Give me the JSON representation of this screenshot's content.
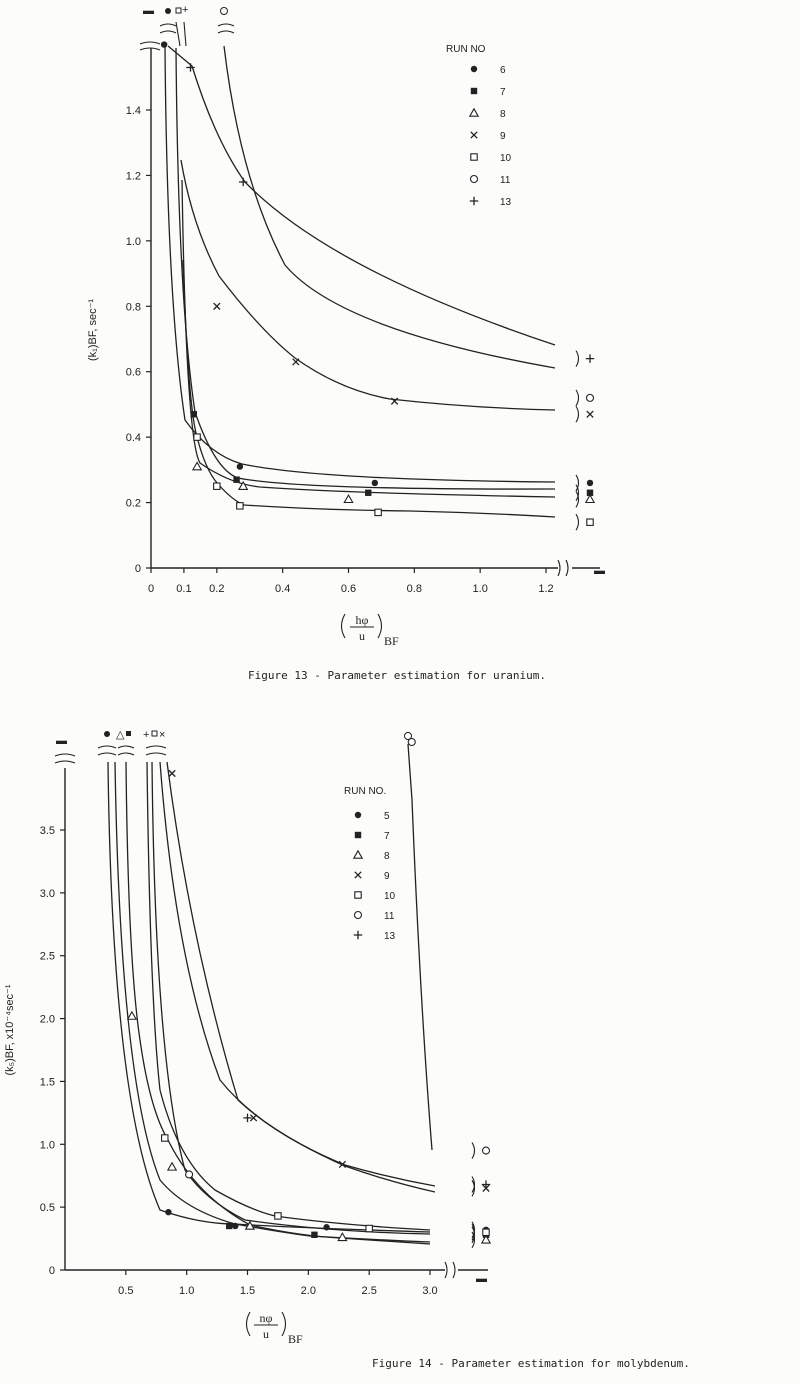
{
  "chart_data": [
    {
      "type": "line",
      "caption": "Figure 13 - Parameter estimation for uranium.",
      "ylabel": "(k₁)BF, sec⁻¹",
      "xlabel_num": "hφ",
      "xlabel_den": "u",
      "xlabel_sub": "BF",
      "ylim": [
        0,
        1.6
      ],
      "xlim": [
        0,
        1.3
      ],
      "x_ticks": [
        "0",
        "0.1",
        "0.2",
        "0.4",
        "0.6",
        "0.8",
        "1.0",
        "1.2"
      ],
      "y_ticks": [
        "0",
        "0.2",
        "0.4",
        "0.6",
        "0.8",
        "1.0",
        "1.2",
        "1.4"
      ],
      "legend_title": "RUN  NO",
      "legend_labels": [
        "6",
        "7",
        "8",
        "9",
        "10",
        "11",
        "13"
      ],
      "series": [
        {
          "name": "6",
          "marker": "filled-circle",
          "x": [
            0.04,
            0.27,
            0.68
          ],
          "y": [
            1.6,
            0.31,
            0.26
          ],
          "tail": 0.26
        },
        {
          "name": "7",
          "marker": "filled-square",
          "x": [
            0.13,
            0.26,
            0.66
          ],
          "y": [
            0.47,
            0.27,
            0.23
          ],
          "tail": 0.23
        },
        {
          "name": "8",
          "marker": "triangle",
          "x": [
            0.14,
            0.28,
            0.6
          ],
          "y": [
            0.31,
            0.25,
            0.21
          ],
          "tail": 0.21
        },
        {
          "name": "9",
          "marker": "x",
          "x": [
            0.2,
            0.44,
            0.74
          ],
          "y": [
            0.8,
            0.63,
            0.51
          ],
          "tail": 0.47
        },
        {
          "name": "10",
          "marker": "open-square",
          "x": [
            0.14,
            0.2,
            0.27,
            0.69
          ],
          "y": [
            0.4,
            0.25,
            0.19,
            0.17
          ],
          "tail": 0.14
        },
        {
          "name": "11",
          "marker": "open-circle",
          "x": [],
          "y": [],
          "tail": 0.52
        },
        {
          "name": "13",
          "marker": "plus",
          "x": [
            0.12,
            0.28
          ],
          "y": [
            1.53,
            1.18
          ],
          "tail": 0.64
        }
      ]
    },
    {
      "type": "line",
      "caption": "Figure 14 - Parameter estimation for molybdenum.",
      "ylabel": "(k₅)BF, x10⁻⁴sec⁻¹",
      "xlabel_num": "nφ",
      "xlabel_den": "u",
      "xlabel_sub": "BF",
      "ylim": [
        0,
        4.0
      ],
      "xlim": [
        0,
        3.0
      ],
      "x_ticks": [
        "0.5",
        "1.0",
        "1.5",
        "2.0",
        "2.5",
        "3.0"
      ],
      "y_ticks": [
        "0",
        "0.5",
        "1.0",
        "1.5",
        "2.0",
        "2.5",
        "3.0",
        "3.5"
      ],
      "legend_title": "RUN  NO.",
      "legend_labels": [
        "5",
        "7",
        "8",
        "9",
        "10",
        "11",
        "13"
      ],
      "series": [
        {
          "name": "5",
          "marker": "filled-circle",
          "x": [
            0.85,
            1.4,
            2.15
          ],
          "y": [
            0.46,
            0.35,
            0.34
          ],
          "tail": 0.32
        },
        {
          "name": "7",
          "marker": "filled-square",
          "x": [
            1.35,
            2.05
          ],
          "y": [
            0.35,
            0.28
          ],
          "tail": 0.28
        },
        {
          "name": "8",
          "marker": "triangle",
          "x": [
            0.55,
            0.88,
            1.52,
            2.28
          ],
          "y": [
            2.02,
            0.82,
            0.35,
            0.26
          ],
          "tail": 0.24
        },
        {
          "name": "9",
          "marker": "x",
          "x": [
            0.88,
            1.55,
            2.28
          ],
          "y": [
            3.95,
            1.21,
            0.84
          ],
          "tail": 0.65
        },
        {
          "name": "10",
          "marker": "open-square",
          "x": [
            0.82,
            1.75,
            2.5
          ],
          "y": [
            1.05,
            0.43,
            0.33
          ],
          "tail": 0.3
        },
        {
          "name": "11",
          "marker": "open-circle",
          "x": [
            1.02,
            2.85
          ],
          "y": [
            0.76,
            4.2
          ],
          "tail": 0.95
        },
        {
          "name": "13",
          "marker": "plus",
          "x": [
            1.5
          ],
          "y": [
            1.21
          ],
          "tail": 0.68
        }
      ]
    }
  ]
}
